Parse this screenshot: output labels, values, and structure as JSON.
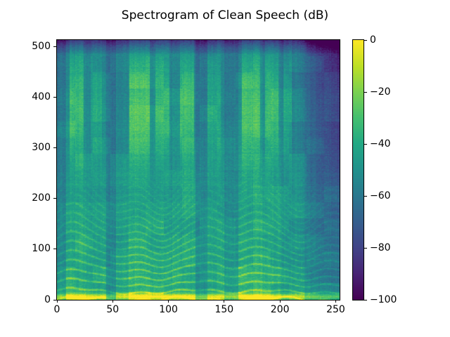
{
  "figure": {
    "background": "#ffffff",
    "text_color": "#000000"
  },
  "chart_data": {
    "type": "heatmap",
    "title": "Spectrogram of Clean Speech (dB)",
    "xlabel": "",
    "ylabel": "",
    "xlim": [
      0,
      253.5
    ],
    "ylim": [
      0,
      513
    ],
    "grid": false,
    "x_ticks": [
      0,
      50,
      100,
      150,
      200,
      250
    ],
    "x_tick_labels": [
      "0",
      "50",
      "100",
      "150",
      "200",
      "250"
    ],
    "y_ticks": [
      0,
      100,
      200,
      300,
      400,
      500
    ],
    "y_tick_labels": [
      "0",
      "100",
      "200",
      "300",
      "400",
      "500"
    ],
    "colorbar": {
      "position": "right",
      "vmin": -100,
      "vmax": 0,
      "unit": "dB",
      "ticks": [
        0,
        -20,
        -40,
        -60,
        -80,
        -100
      ],
      "tick_labels": [
        "0",
        "−20",
        "−40",
        "−60",
        "−80",
        "−100"
      ],
      "cmap": "viridis"
    },
    "colormap_stops": [
      [
        0.0,
        "#440154"
      ],
      [
        0.1,
        "#482475"
      ],
      [
        0.2,
        "#414487"
      ],
      [
        0.3,
        "#355f8d"
      ],
      [
        0.4,
        "#2a788e"
      ],
      [
        0.5,
        "#21918c"
      ],
      [
        0.6,
        "#22a884"
      ],
      [
        0.7,
        "#44bf70"
      ],
      [
        0.8,
        "#7ad151"
      ],
      [
        0.9,
        "#bddf26"
      ],
      [
        1.0,
        "#fde725"
      ]
    ],
    "synthesis": {
      "frames": 254,
      "bins": 513,
      "noise_floor_db": -66,
      "hf_tilt_db": -8,
      "voiced_gain_db": 31,
      "voiced_tilt_db": -9,
      "harmonic_gain_db": 26,
      "harmonic_fade_per_fr_db": -50,
      "harmonic_spacing_bins": 15.5,
      "spacing_wobble": [
        2.0,
        0.045,
        1.2,
        0.11
      ],
      "pitch_wobble": [
        3.0,
        0.07,
        2.0,
        0.19
      ],
      "bottom_band": {
        "center_bin": 5,
        "width": 40,
        "base_db": 12,
        "gain_db": 34
      },
      "fricative_gain_db": 24,
      "fricative_center": 0.75,
      "fricative_sigma": 0.16,
      "top_dark_start_bin": 480,
      "top_dark_slope": 1.0,
      "fade_start_frame": 214,
      "fade_span_frames": 40,
      "fade_db": [
        8,
        20
      ],
      "noise_amp": [
        9,
        3,
        7,
        4
      ],
      "activity_default": 0.3,
      "activity_segments": [
        [
          0,
          8,
          0.55
        ],
        [
          8,
          26,
          0.9
        ],
        [
          26,
          44,
          0.8
        ],
        [
          44,
          53,
          0.45
        ],
        [
          53,
          64,
          0.75
        ],
        [
          64,
          84,
          0.95
        ],
        [
          84,
          103,
          0.85
        ],
        [
          103,
          124,
          0.9
        ],
        [
          124,
          135,
          0.55
        ],
        [
          135,
          150,
          0.8
        ],
        [
          150,
          163,
          0.6
        ],
        [
          163,
          184,
          0.95
        ],
        [
          184,
          201,
          0.85
        ],
        [
          201,
          222,
          0.7
        ],
        [
          222,
          254,
          0.5
        ]
      ],
      "fricative_segments": [
        [
          11,
          24,
          0.8
        ],
        [
          30,
          40,
          0.45
        ],
        [
          65,
          83,
          0.95
        ],
        [
          88,
          101,
          0.75
        ],
        [
          110,
          123,
          0.9
        ],
        [
          135,
          147,
          0.5
        ],
        [
          166,
          182,
          0.9
        ],
        [
          187,
          199,
          0.8
        ],
        [
          203,
          211,
          0.55
        ]
      ]
    }
  }
}
